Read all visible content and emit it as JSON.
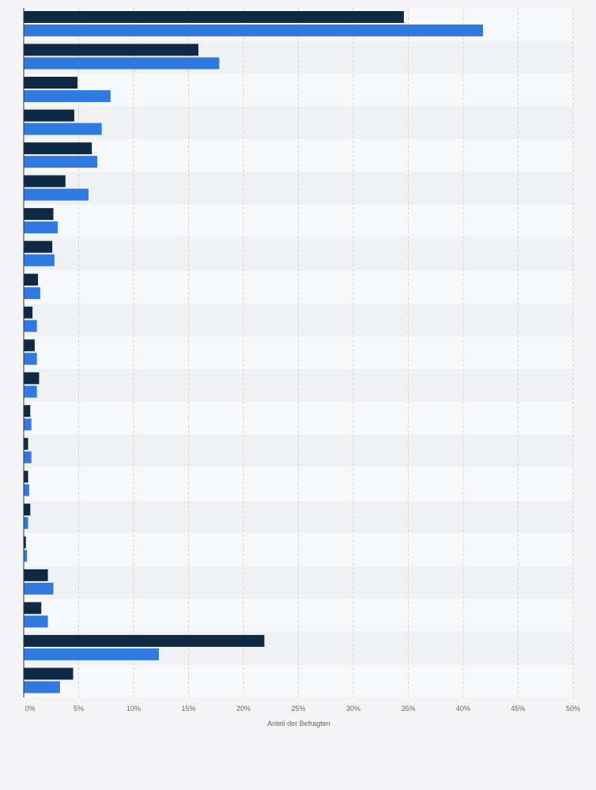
{
  "chart_data": {
    "type": "bar",
    "orientation": "horizontal",
    "title": "",
    "xlabel": "Anteil der Befragten",
    "ylabel": "",
    "xlim": [
      0,
      50
    ],
    "x_ticks": [
      "0%",
      "5%",
      "10%",
      "15%",
      "20%",
      "25%",
      "30%",
      "35%",
      "40%",
      "45%",
      "50%"
    ],
    "x_tick_values": [
      0,
      5,
      10,
      15,
      20,
      25,
      30,
      35,
      40,
      45,
      50
    ],
    "grid": true,
    "legend": "none",
    "category_count": 21,
    "series": [
      {
        "color": "#0f2a45",
        "values": [
          34.6,
          15.9,
          4.9,
          4.6,
          6.2,
          3.8,
          2.7,
          2.6,
          1.3,
          0.8,
          1.0,
          1.4,
          0.6,
          0.4,
          0.4,
          0.6,
          0.2,
          2.2,
          1.6,
          21.9,
          4.5
        ]
      },
      {
        "color": "#2f79e0",
        "values": [
          41.8,
          17.8,
          7.9,
          7.1,
          6.7,
          5.9,
          3.1,
          2.8,
          1.5,
          1.2,
          1.2,
          1.2,
          0.7,
          0.7,
          0.5,
          0.4,
          0.3,
          2.7,
          2.2,
          12.3,
          3.3
        ]
      }
    ],
    "colors": {
      "background": "#f4f4f6",
      "plot_band_light": "#f7f8fa",
      "plot_band_dark": "#f0f1f3",
      "grid": "#d0d0d0",
      "axis": "#333333"
    }
  }
}
